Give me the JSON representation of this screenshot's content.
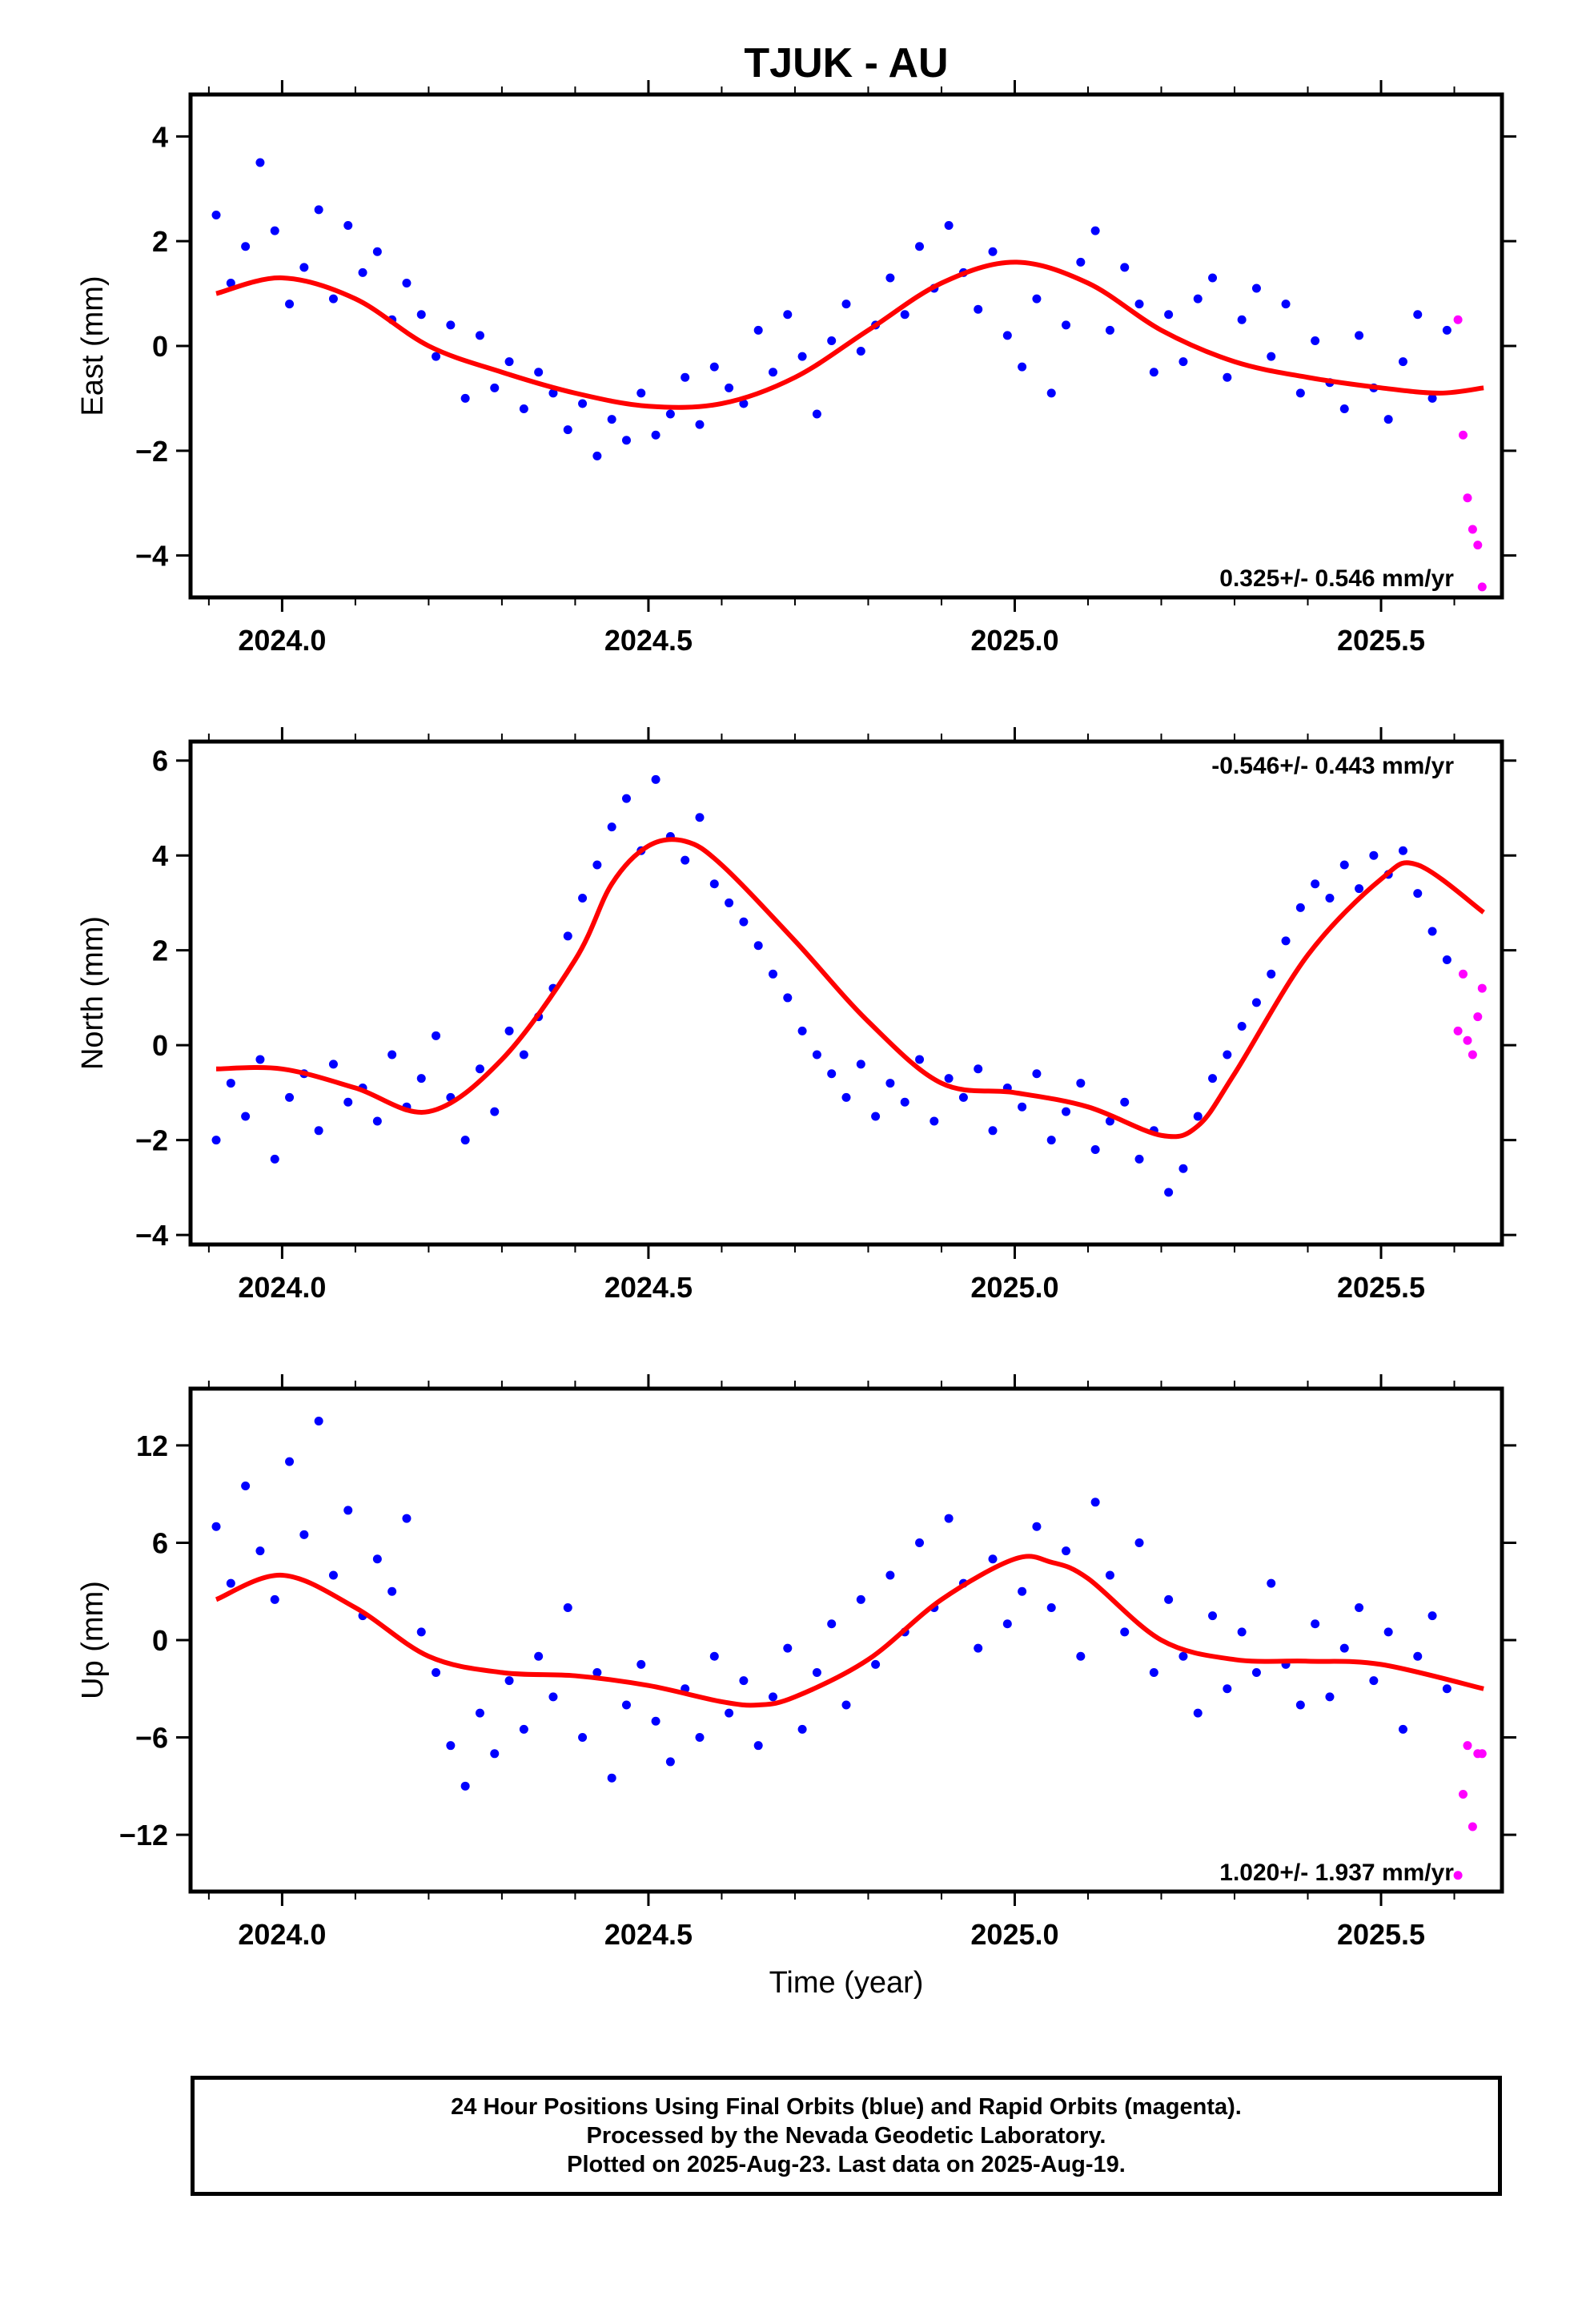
{
  "title": "TJUK - AU",
  "x_axis_label": "Time (year)",
  "footer": {
    "line1": "24 Hour Positions Using Final Orbits (blue) and Rapid Orbits (magenta).",
    "line2": "Processed by the Nevada Geodetic Laboratory.",
    "line3": "Plotted on 2025-Aug-23. Last data on 2025-Aug-19."
  },
  "colors": {
    "final": "#0000ff",
    "rapid": "#ff00ff",
    "model": "#ff0000",
    "frame": "#000000"
  },
  "chart_data": [
    {
      "type": "scatter",
      "ylabel": "East (mm)",
      "xlim": [
        2023.875,
        2025.665
      ],
      "ylim": [
        -4.8,
        4.8
      ],
      "xticks": [
        2024.0,
        2024.5,
        2025.0,
        2025.5
      ],
      "xtick_labels": [
        "2024.0",
        "2024.5",
        "2025.0",
        "2025.5"
      ],
      "yticks": [
        -4,
        -2,
        0,
        2,
        4
      ],
      "ytick_labels": [
        "−4",
        "−2",
        "0",
        "2",
        "4"
      ],
      "rate": "0.325+/- 0.546 mm/yr",
      "rate_position": "bottom-right",
      "final_orbits": {
        "x": [
          2023.91,
          2023.93,
          2023.95,
          2023.97,
          2023.99,
          2024.01,
          2024.03,
          2024.05,
          2024.07,
          2024.09,
          2024.11,
          2024.13,
          2024.15,
          2024.17,
          2024.19,
          2024.21,
          2024.23,
          2024.25,
          2024.27,
          2024.29,
          2024.31,
          2024.33,
          2024.35,
          2024.37,
          2024.39,
          2024.41,
          2024.43,
          2024.45,
          2024.47,
          2024.49,
          2024.51,
          2024.53,
          2024.55,
          2024.57,
          2024.59,
          2024.61,
          2024.63,
          2024.65,
          2024.67,
          2024.69,
          2024.71,
          2024.73,
          2024.75,
          2024.77,
          2024.79,
          2024.81,
          2024.83,
          2024.85,
          2024.87,
          2024.89,
          2024.91,
          2024.93,
          2024.95,
          2024.97,
          2024.99,
          2025.01,
          2025.03,
          2025.05,
          2025.07,
          2025.09,
          2025.11,
          2025.13,
          2025.15,
          2025.17,
          2025.19,
          2025.21,
          2025.23,
          2025.25,
          2025.27,
          2025.29,
          2025.31,
          2025.33,
          2025.35,
          2025.37,
          2025.39,
          2025.41,
          2025.43,
          2025.45,
          2025.47,
          2025.49,
          2025.51,
          2025.53,
          2025.55,
          2025.57,
          2025.59
        ],
        "y": [
          2.5,
          1.2,
          1.9,
          3.5,
          2.2,
          0.8,
          1.5,
          2.6,
          0.9,
          2.3,
          1.4,
          1.8,
          0.5,
          1.2,
          0.6,
          -0.2,
          0.4,
          -1.0,
          0.2,
          -0.8,
          -0.3,
          -1.2,
          -0.5,
          -0.9,
          -1.6,
          -1.1,
          -2.1,
          -1.4,
          -1.8,
          -0.9,
          -1.7,
          -1.3,
          -0.6,
          -1.5,
          -0.4,
          -0.8,
          -1.1,
          0.3,
          -0.5,
          0.6,
          -0.2,
          -1.3,
          0.1,
          0.8,
          -0.1,
          0.4,
          1.3,
          0.6,
          1.9,
          1.1,
          2.3,
          1.4,
          0.7,
          1.8,
          0.2,
          -0.4,
          0.9,
          -0.9,
          0.4,
          1.6,
          2.2,
          0.3,
          1.5,
          0.8,
          -0.5,
          0.6,
          -0.3,
          0.9,
          1.3,
          -0.6,
          0.5,
          1.1,
          -0.2,
          0.8,
          -0.9,
          0.1,
          -0.7,
          -1.2,
          0.2,
          -0.8,
          -1.4,
          -0.3,
          0.6,
          -1.0,
          0.3
        ]
      },
      "rapid_orbits": {
        "x": [
          2025.605,
          2025.612,
          2025.618,
          2025.625,
          2025.632,
          2025.638
        ],
        "y": [
          0.5,
          -1.7,
          -2.9,
          -3.5,
          -3.8,
          -4.6
        ]
      },
      "model": {
        "x": [
          2023.91,
          2024.0,
          2024.1,
          2024.2,
          2024.3,
          2024.4,
          2024.5,
          2024.6,
          2024.7,
          2024.8,
          2024.9,
          2025.0,
          2025.1,
          2025.2,
          2025.3,
          2025.4,
          2025.5,
          2025.58,
          2025.64
        ],
        "y": [
          1.0,
          1.3,
          0.9,
          0.0,
          -0.5,
          -0.9,
          -1.15,
          -1.1,
          -0.6,
          0.3,
          1.2,
          1.6,
          1.2,
          0.3,
          -0.3,
          -0.6,
          -0.8,
          -0.9,
          -0.8
        ]
      }
    },
    {
      "type": "scatter",
      "ylabel": "North (mm)",
      "xlim": [
        2023.875,
        2025.665
      ],
      "ylim": [
        -4.2,
        6.4
      ],
      "xticks": [
        2024.0,
        2024.5,
        2025.0,
        2025.5
      ],
      "xtick_labels": [
        "2024.0",
        "2024.5",
        "2025.0",
        "2025.5"
      ],
      "yticks": [
        -4,
        -2,
        0,
        2,
        4,
        6
      ],
      "ytick_labels": [
        "−4",
        "−2",
        "0",
        "2",
        "4",
        "6"
      ],
      "rate": "-0.546+/- 0.443 mm/yr",
      "rate_position": "top-right",
      "final_orbits": {
        "x": [
          2023.91,
          2023.93,
          2023.95,
          2023.97,
          2023.99,
          2024.01,
          2024.03,
          2024.05,
          2024.07,
          2024.09,
          2024.11,
          2024.13,
          2024.15,
          2024.17,
          2024.19,
          2024.21,
          2024.23,
          2024.25,
          2024.27,
          2024.29,
          2024.31,
          2024.33,
          2024.35,
          2024.37,
          2024.39,
          2024.41,
          2024.43,
          2024.45,
          2024.47,
          2024.49,
          2024.51,
          2024.53,
          2024.55,
          2024.57,
          2024.59,
          2024.61,
          2024.63,
          2024.65,
          2024.67,
          2024.69,
          2024.71,
          2024.73,
          2024.75,
          2024.77,
          2024.79,
          2024.81,
          2024.83,
          2024.85,
          2024.87,
          2024.89,
          2024.91,
          2024.93,
          2024.95,
          2024.97,
          2024.99,
          2025.01,
          2025.03,
          2025.05,
          2025.07,
          2025.09,
          2025.11,
          2025.13,
          2025.15,
          2025.17,
          2025.19,
          2025.21,
          2025.23,
          2025.25,
          2025.27,
          2025.29,
          2025.31,
          2025.33,
          2025.35,
          2025.37,
          2025.39,
          2025.41,
          2025.43,
          2025.45,
          2025.47,
          2025.49,
          2025.51,
          2025.53,
          2025.55,
          2025.57,
          2025.59
        ],
        "y": [
          -2.0,
          -0.8,
          -1.5,
          -0.3,
          -2.4,
          -1.1,
          -0.6,
          -1.8,
          -0.4,
          -1.2,
          -0.9,
          -1.6,
          -0.2,
          -1.3,
          -0.7,
          0.2,
          -1.1,
          -2.0,
          -0.5,
          -1.4,
          0.3,
          -0.2,
          0.6,
          1.2,
          2.3,
          3.1,
          3.8,
          4.6,
          5.2,
          4.1,
          5.6,
          4.4,
          3.9,
          4.8,
          3.4,
          3.0,
          2.6,
          2.1,
          1.5,
          1.0,
          0.3,
          -0.2,
          -0.6,
          -1.1,
          -0.4,
          -1.5,
          -0.8,
          -1.2,
          -0.3,
          -1.6,
          -0.7,
          -1.1,
          -0.5,
          -1.8,
          -0.9,
          -1.3,
          -0.6,
          -2.0,
          -1.4,
          -0.8,
          -2.2,
          -1.6,
          -1.2,
          -2.4,
          -1.8,
          -3.1,
          -2.6,
          -1.5,
          -0.7,
          -0.2,
          0.4,
          0.9,
          1.5,
          2.2,
          2.9,
          3.4,
          3.1,
          3.8,
          3.3,
          4.0,
          3.6,
          4.1,
          3.2,
          2.4,
          1.8
        ]
      },
      "rapid_orbits": {
        "x": [
          2025.605,
          2025.612,
          2025.618,
          2025.625,
          2025.632,
          2025.638
        ],
        "y": [
          0.3,
          1.5,
          0.1,
          -0.2,
          0.6,
          1.2
        ]
      },
      "model": {
        "x": [
          2023.91,
          2024.0,
          2024.1,
          2024.2,
          2024.3,
          2024.4,
          2024.45,
          2024.5,
          2024.55,
          2024.6,
          2024.7,
          2024.8,
          2024.9,
          2025.0,
          2025.1,
          2025.2,
          2025.25,
          2025.3,
          2025.4,
          2025.5,
          2025.55,
          2025.64
        ],
        "y": [
          -0.5,
          -0.5,
          -0.9,
          -1.4,
          -0.3,
          1.8,
          3.4,
          4.2,
          4.3,
          3.8,
          2.2,
          0.5,
          -0.8,
          -1.0,
          -1.3,
          -1.9,
          -1.7,
          -0.6,
          1.9,
          3.5,
          3.8,
          2.8
        ]
      }
    },
    {
      "type": "scatter",
      "ylabel": "Up (mm)",
      "xlabel": "Time (year)",
      "xlim": [
        2023.875,
        2025.665
      ],
      "ylim": [
        -15.5,
        15.5
      ],
      "xticks": [
        2024.0,
        2024.5,
        2025.0,
        2025.5
      ],
      "xtick_labels": [
        "2024.0",
        "2024.5",
        "2025.0",
        "2025.5"
      ],
      "yticks": [
        -12,
        -6,
        0,
        6,
        12
      ],
      "ytick_labels": [
        "−12",
        "−6",
        "0",
        "6",
        "12"
      ],
      "rate": "1.020+/- 1.937 mm/yr",
      "rate_position": "bottom-right",
      "final_orbits": {
        "x": [
          2023.91,
          2023.93,
          2023.95,
          2023.97,
          2023.99,
          2024.01,
          2024.03,
          2024.05,
          2024.07,
          2024.09,
          2024.11,
          2024.13,
          2024.15,
          2024.17,
          2024.19,
          2024.21,
          2024.23,
          2024.25,
          2024.27,
          2024.29,
          2024.31,
          2024.33,
          2024.35,
          2024.37,
          2024.39,
          2024.41,
          2024.43,
          2024.45,
          2024.47,
          2024.49,
          2024.51,
          2024.53,
          2024.55,
          2024.57,
          2024.59,
          2024.61,
          2024.63,
          2024.65,
          2024.67,
          2024.69,
          2024.71,
          2024.73,
          2024.75,
          2024.77,
          2024.79,
          2024.81,
          2024.83,
          2024.85,
          2024.87,
          2024.89,
          2024.91,
          2024.93,
          2024.95,
          2024.97,
          2024.99,
          2025.01,
          2025.03,
          2025.05,
          2025.07,
          2025.09,
          2025.11,
          2025.13,
          2025.15,
          2025.17,
          2025.19,
          2025.21,
          2025.23,
          2025.25,
          2025.27,
          2025.29,
          2025.31,
          2025.33,
          2025.35,
          2025.37,
          2025.39,
          2025.41,
          2025.43,
          2025.45,
          2025.47,
          2025.49,
          2025.51,
          2025.53,
          2025.55,
          2025.57,
          2025.59
        ],
        "y": [
          7.0,
          3.5,
          9.5,
          5.5,
          2.5,
          11.0,
          6.5,
          13.5,
          4.0,
          8.0,
          1.5,
          5.0,
          3.0,
          7.5,
          0.5,
          -2.0,
          -6.5,
          -9.0,
          -4.5,
          -7.0,
          -2.5,
          -5.5,
          -1.0,
          -3.5,
          2.0,
          -6.0,
          -2.0,
          -8.5,
          -4.0,
          -1.5,
          -5.0,
          -7.5,
          -3.0,
          -6.0,
          -1.0,
          -4.5,
          -2.5,
          -6.5,
          -3.5,
          -0.5,
          -5.5,
          -2.0,
          1.0,
          -4.0,
          2.5,
          -1.5,
          4.0,
          0.5,
          6.0,
          2.0,
          7.5,
          3.5,
          -0.5,
          5.0,
          1.0,
          3.0,
          7.0,
          2.0,
          5.5,
          -1.0,
          8.5,
          4.0,
          0.5,
          6.0,
          -2.0,
          2.5,
          -1.0,
          -4.5,
          1.5,
          -3.0,
          0.5,
          -2.0,
          3.5,
          -1.5,
          -4.0,
          1.0,
          -3.5,
          -0.5,
          2.0,
          -2.5,
          0.5,
          -5.5,
          -1.0,
          1.5,
          -3.0
        ]
      },
      "rapid_orbits": {
        "x": [
          2025.605,
          2025.612,
          2025.618,
          2025.625,
          2025.632,
          2025.638
        ],
        "y": [
          -14.5,
          -9.5,
          -6.5,
          -11.5,
          -7.0,
          -7.0
        ]
      },
      "model": {
        "x": [
          2023.91,
          2024.0,
          2024.1,
          2024.2,
          2024.3,
          2024.4,
          2024.5,
          2024.6,
          2024.65,
          2024.7,
          2024.8,
          2024.9,
          2025.0,
          2025.05,
          2025.1,
          2025.2,
          2025.3,
          2025.4,
          2025.5,
          2025.64
        ],
        "y": [
          2.5,
          4.0,
          2.0,
          -1.0,
          -2.0,
          -2.2,
          -2.8,
          -3.8,
          -4.0,
          -3.5,
          -1.2,
          2.5,
          5.0,
          4.8,
          3.8,
          0.0,
          -1.2,
          -1.3,
          -1.5,
          -3.0
        ]
      }
    }
  ]
}
